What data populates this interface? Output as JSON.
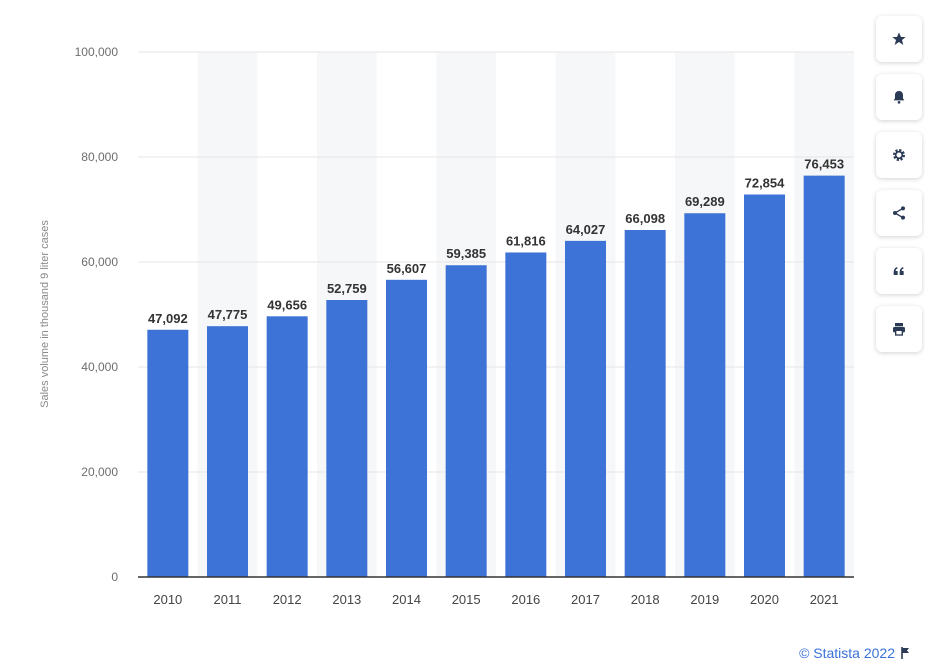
{
  "chart_data": {
    "type": "bar",
    "categories": [
      "2010",
      "2011",
      "2012",
      "2013",
      "2014",
      "2015",
      "2016",
      "2017",
      "2018",
      "2019",
      "2020",
      "2021"
    ],
    "values": [
      47092,
      47775,
      49656,
      52759,
      56607,
      59385,
      61816,
      64027,
      66098,
      69289,
      72854,
      76453
    ],
    "value_labels": [
      "47,092",
      "47,775",
      "49,656",
      "52,759",
      "56,607",
      "59,385",
      "61,816",
      "64,027",
      "66,098",
      "69,289",
      "72,854",
      "76,453"
    ],
    "ylabel": "Sales volume in thousand 9 liter cases",
    "ylim": [
      0,
      100000
    ],
    "yticks": [
      0,
      20000,
      40000,
      60000,
      80000,
      100000
    ],
    "ytick_labels": [
      "0",
      "20,000",
      "40,000",
      "60,000",
      "80,000",
      "100,000"
    ],
    "grid": true,
    "bar_color": "#3d73d7"
  },
  "sidebar": {
    "buttons": [
      {
        "icon": "star-icon"
      },
      {
        "icon": "bell-icon"
      },
      {
        "icon": "gear-icon"
      },
      {
        "icon": "share-icon"
      },
      {
        "icon": "quote-icon"
      },
      {
        "icon": "print-icon"
      }
    ]
  },
  "footer": {
    "credit": "© Statista 2022",
    "accent": "#3b72d9"
  }
}
